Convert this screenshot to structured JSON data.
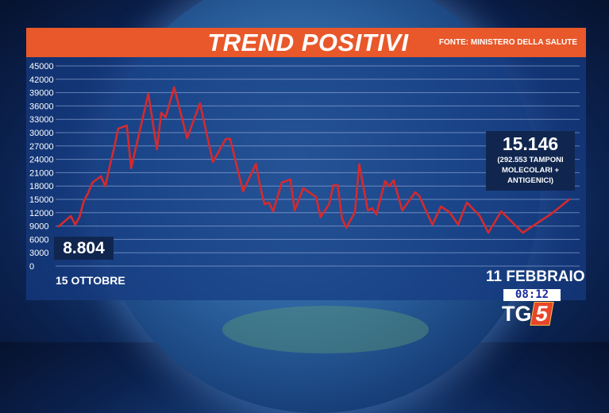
{
  "header": {
    "title": "TREND POSITIVI",
    "source": "FONTE: MINISTERO DELLA SALUTE"
  },
  "colors": {
    "header": "#e8582a",
    "line": "#d42a2e",
    "panel": "#163c82",
    "label_box": "#10264f"
  },
  "labels": {
    "start_value": "8.804",
    "end_value": "15.146",
    "end_note_1": "(292.553 TAMPONI",
    "end_note_2": "MOLECOLARI +",
    "end_note_3": "ANTIGENICI)",
    "start_date": "15 OTTOBRE",
    "end_date": "11 FEBBRAIO"
  },
  "broadcast": {
    "time": "08:12",
    "logo_tg": "TG",
    "logo_num": "5"
  },
  "chart_data": {
    "type": "line",
    "title": "TREND POSITIVI",
    "xlabel": "",
    "ylabel": "",
    "ylim": [
      0,
      45000
    ],
    "yticks": [
      "45000",
      "42000",
      "39000",
      "36000",
      "33000",
      "30000",
      "27000",
      "24000",
      "21000",
      "18000",
      "15000",
      "12000",
      "9000",
      "6000",
      "3000",
      "0"
    ],
    "grid": true,
    "xticks": [
      "15 OTTOBRE",
      "11 FEBBRAIO"
    ],
    "x": [
      "10-15",
      "10-18",
      "10-19",
      "10-20",
      "10-21",
      "10-22",
      "10-23",
      "10-25",
      "10-26",
      "10-27",
      "10-28",
      "10-29",
      "10-31",
      "11-01",
      "11-05",
      "11-07",
      "11-08",
      "11-09",
      "11-11",
      "11-14",
      "11-17",
      "11-20",
      "11-23",
      "11-24",
      "11-27",
      "11-30",
      "12-01",
      "12-02",
      "12-03",
      "12-04",
      "12-06",
      "12-08",
      "12-09",
      "12-11",
      "12-14",
      "12-15",
      "12-17",
      "12-18",
      "12-19",
      "12-20",
      "12-21",
      "12-23",
      "12-24",
      "12-26",
      "12-27",
      "12-28",
      "12-30",
      "12-31",
      "01-01",
      "01-03",
      "01-06",
      "01-07",
      "01-10",
      "01-12",
      "01-14",
      "01-16",
      "01-18",
      "01-21",
      "01-23",
      "01-26",
      "01-31",
      "02-07",
      "02-11"
    ],
    "values": [
      8804,
      11250,
      9300,
      11000,
      14600,
      16400,
      18750,
      20200,
      17900,
      22300,
      26400,
      30900,
      31600,
      22000,
      38750,
      26250,
      34500,
      33400,
      40200,
      28750,
      36600,
      23400,
      28600,
      28600,
      16800,
      23000,
      17800,
      13900,
      14300,
      12300,
      18750,
      19500,
      12500,
      17500,
      15500,
      11000,
      13900,
      18200,
      18200,
      10700,
      8600,
      12100,
      22900,
      12500,
      13000,
      11600,
      19100,
      17900,
      19300,
      12500,
      16600,
      15700,
      9300,
      13400,
      12100,
      9300,
      14300,
      11300,
      7500,
      12300,
      7500,
      12000,
      15146
    ]
  }
}
